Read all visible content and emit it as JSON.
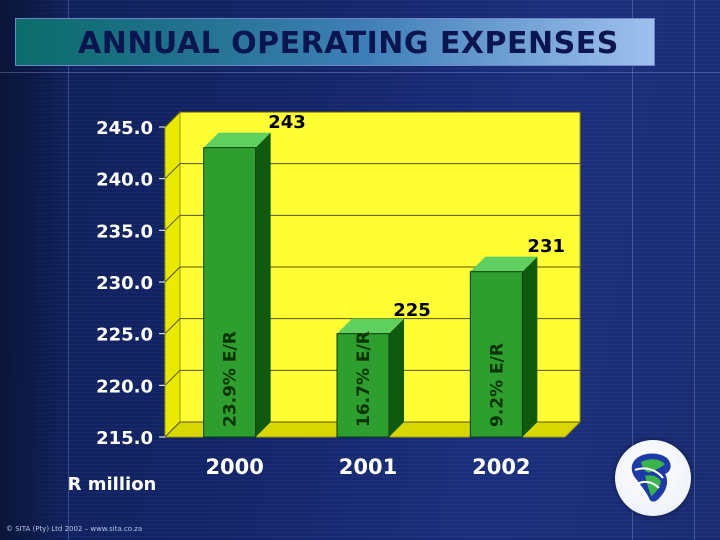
{
  "page": {
    "title": "ANNUAL OPERATING EXPENSES",
    "footer": "© SITA (Pty) Ltd 2002 – www.sita.co.za"
  },
  "chart_data": {
    "type": "bar",
    "title": "ANNUAL OPERATING EXPENSES",
    "xlabel": "",
    "ylabel": "R million",
    "categories": [
      "2000",
      "2001",
      "2002"
    ],
    "values": [
      243,
      225,
      231
    ],
    "data_labels": [
      "243",
      "225",
      "231"
    ],
    "bar_annotations": [
      "23.9% E/R",
      "16.7% E/R",
      "9.2% E/R"
    ],
    "ylim": [
      215.0,
      245.0
    ],
    "yticks": [
      215.0,
      220.0,
      225.0,
      230.0,
      235.0,
      240.0,
      245.0
    ],
    "ytick_labels": [
      "215.0",
      "220.0",
      "225.0",
      "230.0",
      "235.0",
      "240.0",
      "245.0"
    ],
    "grid": true,
    "legend": null,
    "colors": {
      "plot_bg": "#ffff33",
      "plot_wall": "#e8e800",
      "bar_front": "#2e9e2e",
      "bar_side": "#0f5a0f",
      "bar_top": "#5fcf5f",
      "text": "#ffffff",
      "annotation": "#0a3300"
    }
  }
}
